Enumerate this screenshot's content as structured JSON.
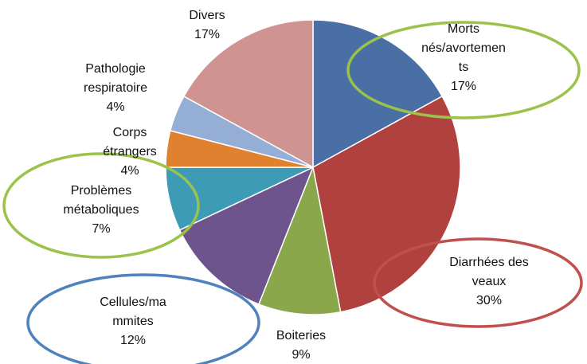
{
  "chart_data": {
    "type": "pie",
    "categories": [
      "Morts nés/avortements",
      "Diarrhées des veaux",
      "Boiteries",
      "Cellules/mammites",
      "Problèmes métaboliques",
      "Corps étrangers",
      "Pathologie respiratoire",
      "Divers"
    ],
    "values": [
      17,
      30,
      9,
      12,
      7,
      4,
      4,
      17
    ],
    "value_labels": [
      "17%",
      "30%",
      "9%",
      "12%",
      "7%",
      "4%",
      "4%",
      "17%"
    ],
    "colors": [
      "#4a6fa5",
      "#b0413e",
      "#8aa84b",
      "#6e548d",
      "#3d9bb5",
      "#e0812f",
      "#94aed5",
      "#cf9391"
    ]
  }
}
